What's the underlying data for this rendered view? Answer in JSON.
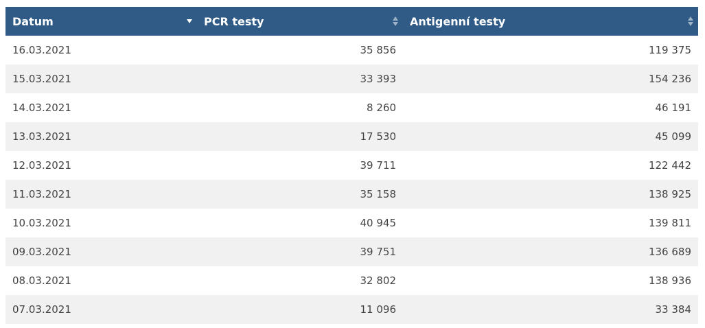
{
  "table": {
    "columns": [
      {
        "label": "Datum",
        "sort": "descending"
      },
      {
        "label": "PCR testy",
        "sort": "both"
      },
      {
        "label": "Antigenní testy",
        "sort": "both"
      }
    ],
    "rows": [
      {
        "date": "16.03.2021",
        "pcr": "35 856",
        "antigen": "119 375"
      },
      {
        "date": "15.03.2021",
        "pcr": "33 393",
        "antigen": "154 236"
      },
      {
        "date": "14.03.2021",
        "pcr": "8 260",
        "antigen": "46 191"
      },
      {
        "date": "13.03.2021",
        "pcr": "17 530",
        "antigen": "45 099"
      },
      {
        "date": "12.03.2021",
        "pcr": "39 711",
        "antigen": "122 442"
      },
      {
        "date": "11.03.2021",
        "pcr": "35 158",
        "antigen": "138 925"
      },
      {
        "date": "10.03.2021",
        "pcr": "40 945",
        "antigen": "139 811"
      },
      {
        "date": "09.03.2021",
        "pcr": "39 751",
        "antigen": "136 689"
      },
      {
        "date": "08.03.2021",
        "pcr": "32 802",
        "antigen": "138 936"
      },
      {
        "date": "07.03.2021",
        "pcr": "11 096",
        "antigen": "33 384"
      }
    ]
  },
  "colors": {
    "header_bg": "#2f5b86",
    "header_text": "#ffffff",
    "row_alt_bg": "#f1f1f1",
    "cell_text": "#444444",
    "sort_active": "#ffffff",
    "sort_inactive": "#9fb3c8"
  },
  "icons": {
    "date_sort": "sort-descending-icon",
    "pcr_sort": "sort-both-icon",
    "antigen_sort": "sort-both-icon"
  }
}
